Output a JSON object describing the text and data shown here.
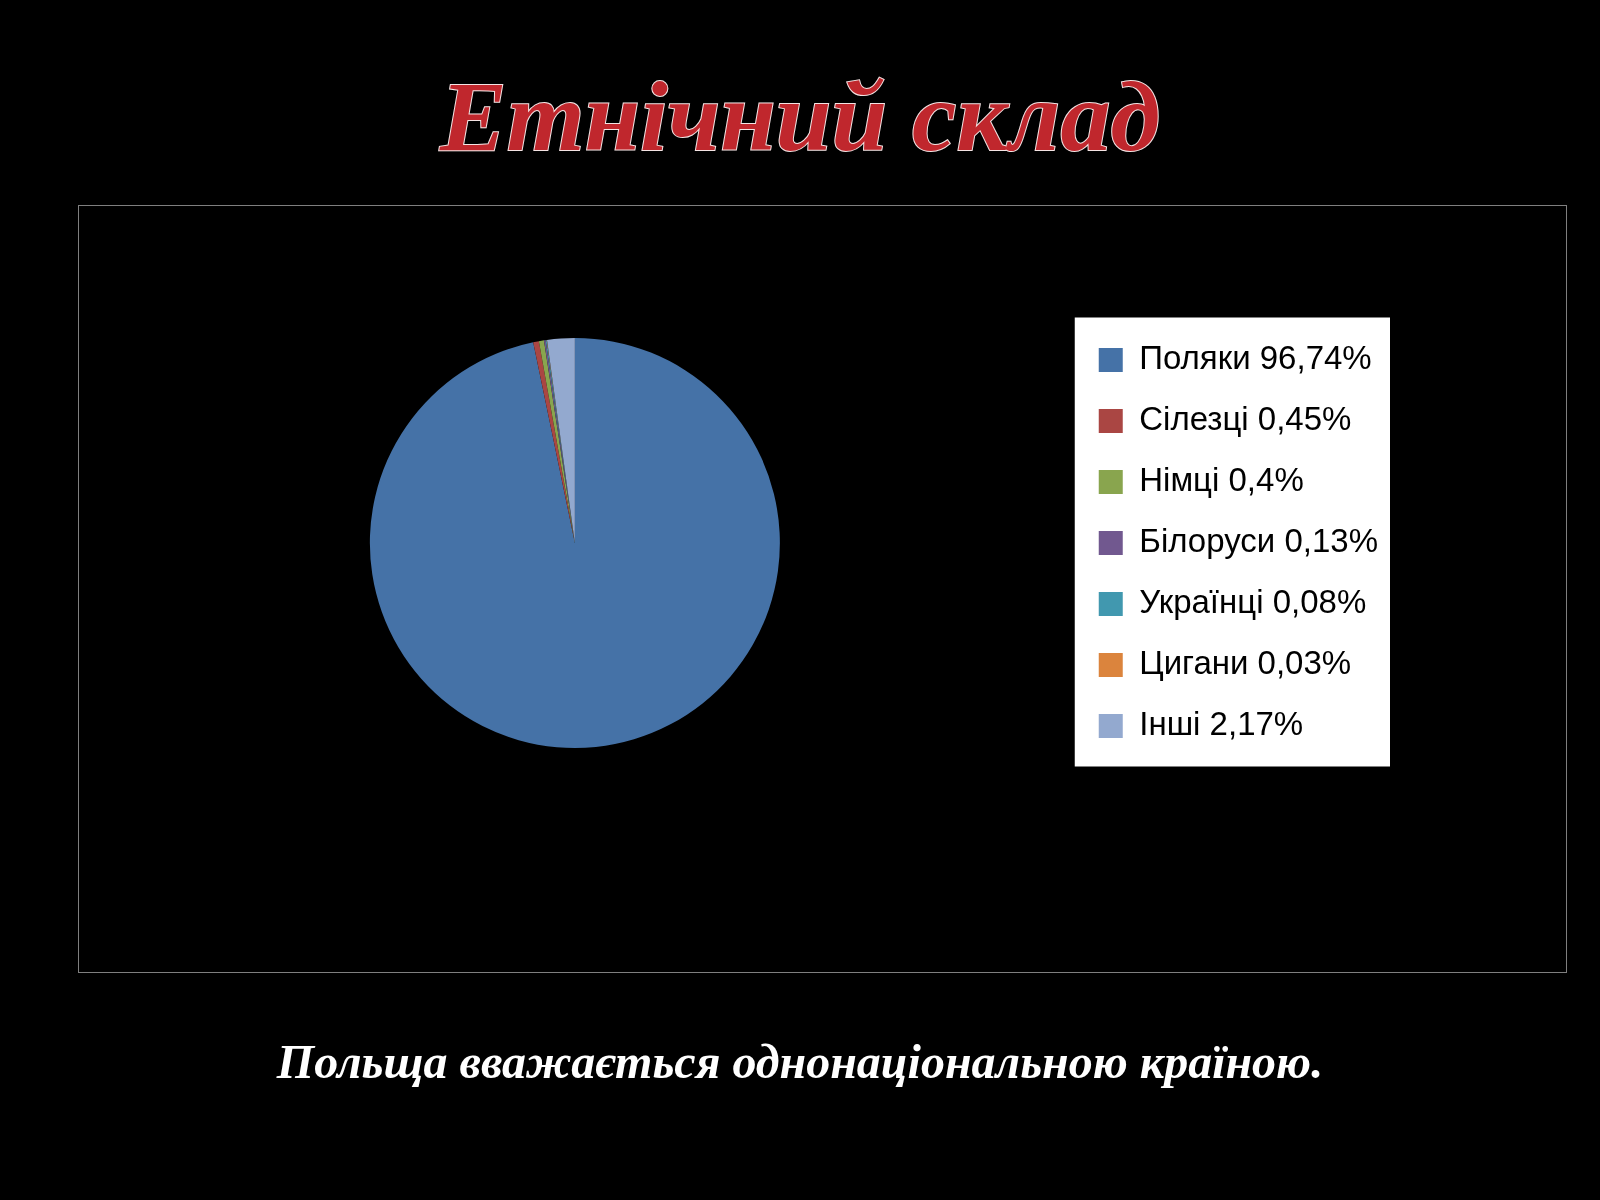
{
  "chart_data": {
    "type": "pie",
    "title": "Етнічний склад",
    "categories": [
      "Поляки 96,74%",
      "Сілезці 0,45%",
      "Німці 0,4%",
      "Білоруси 0,13%",
      "Українці 0,08%",
      "Цигани 0,03%",
      "Інші 2,17%"
    ],
    "values": [
      96.74,
      0.45,
      0.4,
      0.13,
      0.08,
      0.03,
      2.17
    ],
    "colors": [
      "#4572a7",
      "#aa4643",
      "#89a54e",
      "#71588f",
      "#4198af",
      "#db843d",
      "#93a9cf"
    ],
    "legend": "right",
    "annotations": [
      "Польща вважається однонаціональною країною."
    ]
  }
}
